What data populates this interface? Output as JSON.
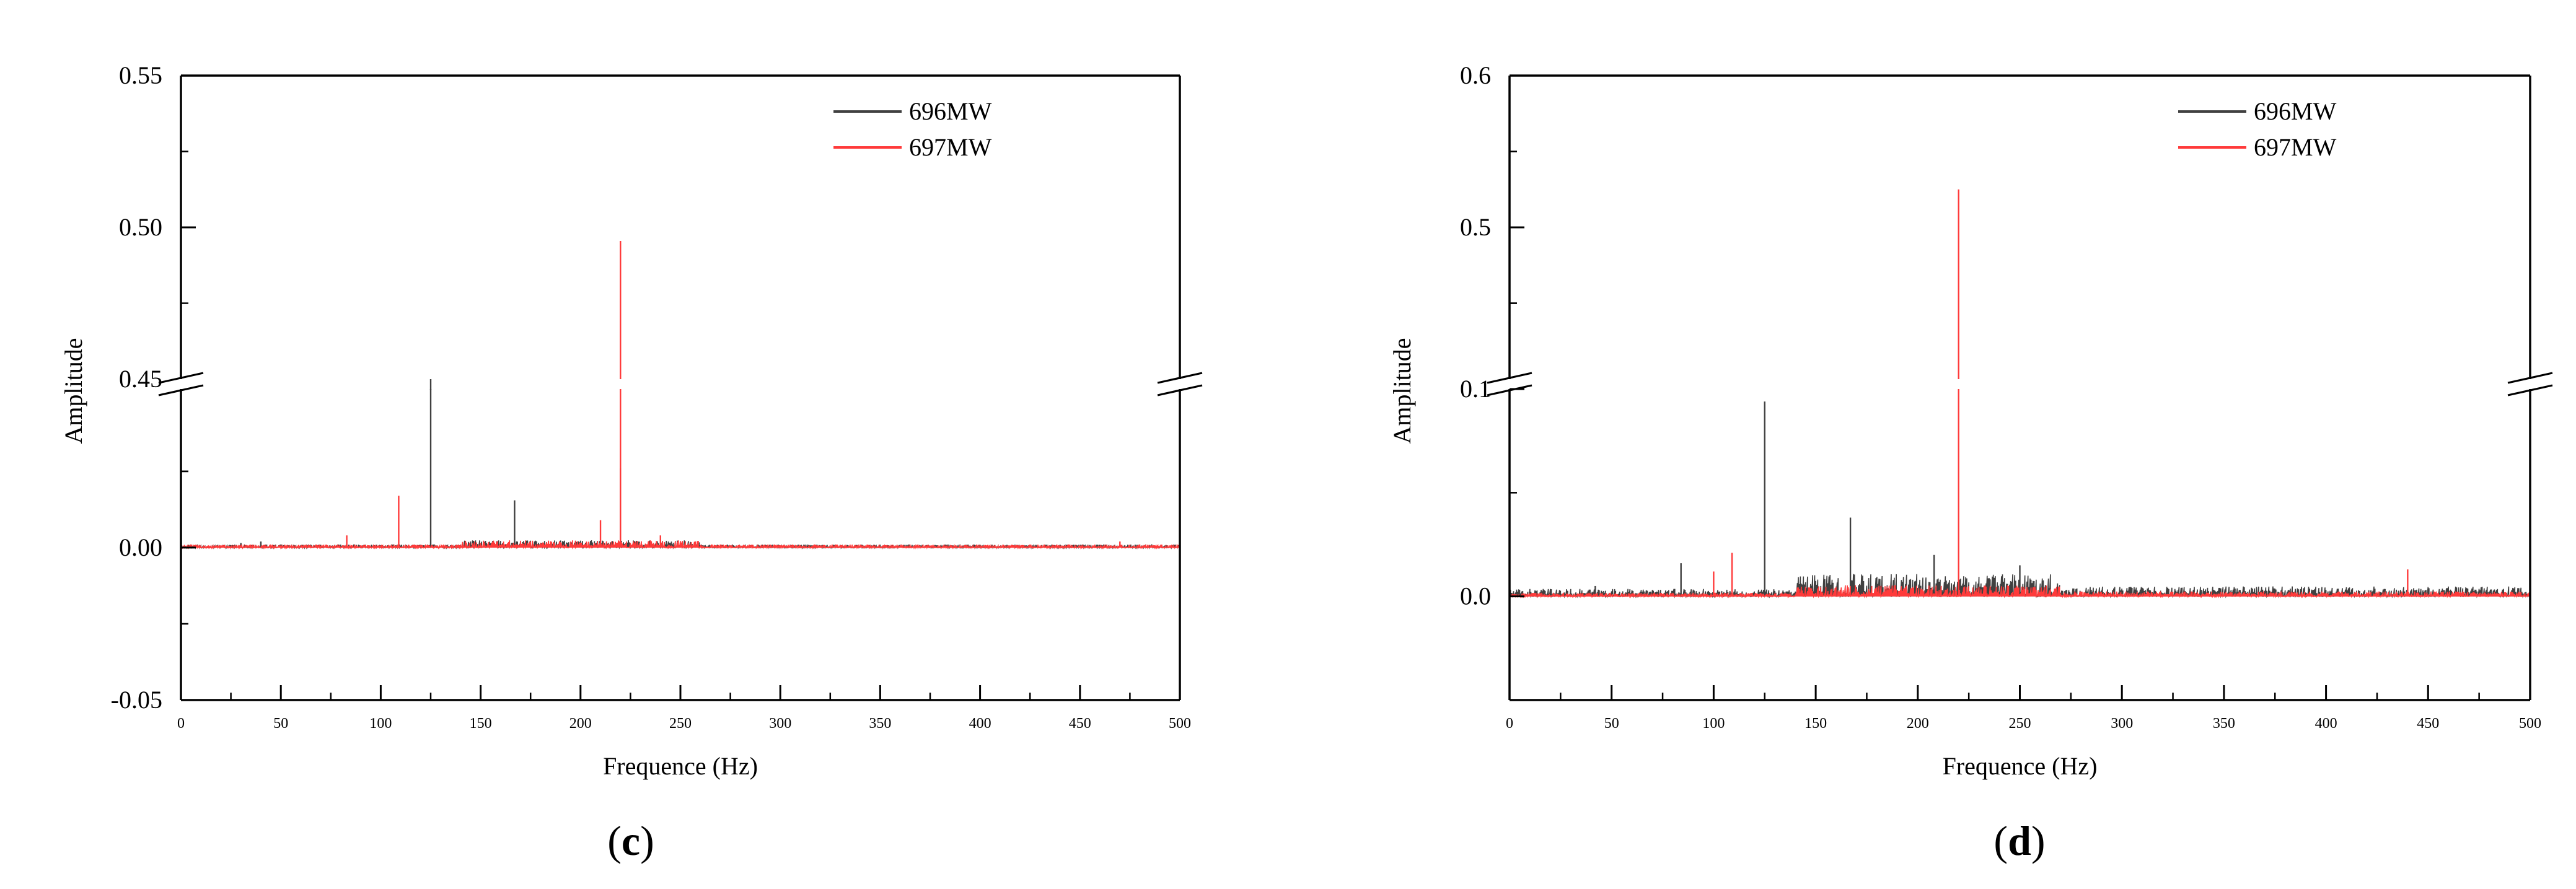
{
  "chart_data": [
    {
      "type": "line",
      "panel_label": {
        "open": "(",
        "letter": "c",
        "close": ")"
      },
      "xlabel": "Frequence (Hz)",
      "ylabel": "Amplitude",
      "xlim": [
        0,
        500
      ],
      "x_ticks": [
        "0",
        "50",
        "100",
        "150",
        "200",
        "250",
        "300",
        "350",
        "400",
        "450",
        "500"
      ],
      "y_axis_break": true,
      "y_lower_segment": {
        "ylim": [
          -0.05,
          0.052
        ],
        "ticks": [
          "-0.05",
          "0.00"
        ]
      },
      "y_upper_segment": {
        "ylim": [
          0.45,
          0.55
        ],
        "ticks": [
          "0.45",
          "0.50",
          "0.55"
        ]
      },
      "legend": {
        "position": "top-right"
      },
      "series": [
        {
          "name": "696MW",
          "color": "#404040",
          "baseline_noise": 0.002,
          "peaks": [
            {
              "x": 125,
              "y": 0.4465
            },
            {
              "x": 167,
              "y": 0.0155
            },
            {
              "x": 220,
              "y": 0.026
            },
            {
              "x": 40,
              "y": 0.002
            },
            {
              "x": 30,
              "y": 0.0015
            }
          ]
        },
        {
          "name": "697MW",
          "color": "#ff3a3a",
          "baseline_noise": 0.002,
          "peaks": [
            {
              "x": 220,
              "y": 0.4955
            },
            {
              "x": 109,
              "y": 0.017
            },
            {
              "x": 210,
              "y": 0.009
            },
            {
              "x": 83,
              "y": 0.004
            },
            {
              "x": 240,
              "y": 0.004
            },
            {
              "x": 470,
              "y": 0.002
            }
          ]
        }
      ]
    },
    {
      "type": "line",
      "panel_label": {
        "open": "(",
        "letter": "d",
        "close": ")"
      },
      "xlabel": "Frequence (Hz)",
      "ylabel": "Amplitude",
      "xlim": [
        0,
        500
      ],
      "x_ticks": [
        "0",
        "50",
        "100",
        "150",
        "200",
        "250",
        "300",
        "350",
        "400",
        "450",
        "500"
      ],
      "y_axis_break": true,
      "y_lower_segment": {
        "ylim": [
          -0.05,
          0.1
        ],
        "ticks": [
          "0.0",
          "0.1"
        ]
      },
      "y_upper_segment": {
        "ylim": [
          0.4,
          0.6
        ],
        "ticks": [
          "0.5",
          "0.6"
        ]
      },
      "legend": {
        "position": "top-right"
      },
      "series": [
        {
          "name": "696MW",
          "color": "#404040",
          "baseline_noise": 0.006,
          "peaks": [
            {
              "x": 125,
              "y": 0.094
            },
            {
              "x": 167,
              "y": 0.038
            },
            {
              "x": 84,
              "y": 0.016
            },
            {
              "x": 208,
              "y": 0.02
            },
            {
              "x": 250,
              "y": 0.015
            },
            {
              "x": 42,
              "y": 0.005
            }
          ]
        },
        {
          "name": "697MW",
          "color": "#ff3a3a",
          "baseline_noise": 0.003,
          "peaks": [
            {
              "x": 220,
              "y": 0.525
            },
            {
              "x": 109,
              "y": 0.021
            },
            {
              "x": 100,
              "y": 0.012
            },
            {
              "x": 440,
              "y": 0.013
            }
          ]
        }
      ]
    }
  ]
}
